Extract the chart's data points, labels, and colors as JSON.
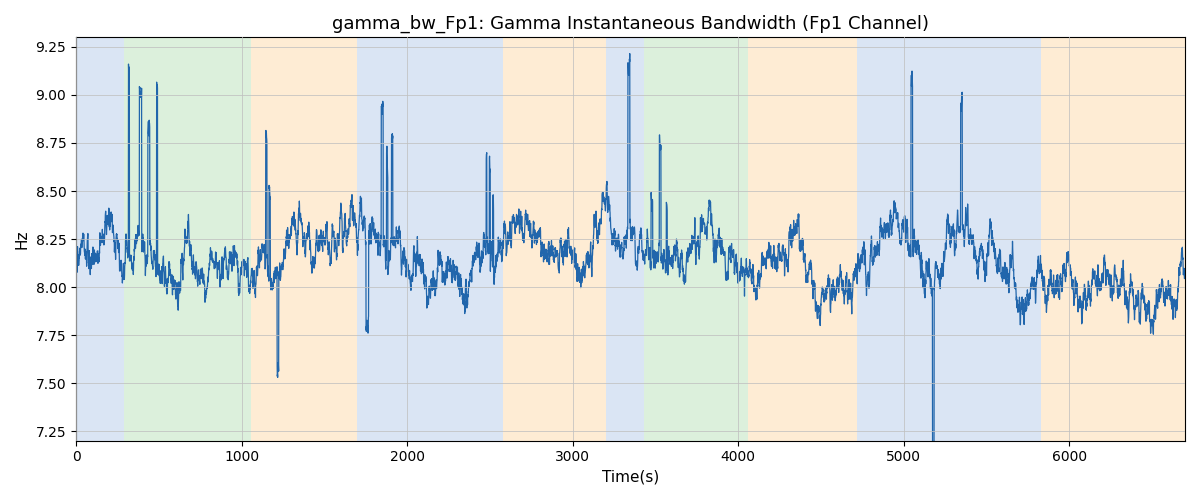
{
  "title": "gamma_bw_Fp1: Gamma Instantaneous Bandwidth (Fp1 Channel)",
  "xlabel": "Time(s)",
  "ylabel": "Hz",
  "xlim": [
    0,
    6700
  ],
  "ylim": [
    7.2,
    9.3
  ],
  "line_color": "#2166ac",
  "line_width": 0.9,
  "bg_color": "#ffffff",
  "grid_color": "#c0c0c0",
  "bands": [
    {
      "xmin": 0,
      "xmax": 290,
      "color": "#aec6e8",
      "alpha": 0.45
    },
    {
      "xmin": 290,
      "xmax": 1060,
      "color": "#b2dfb2",
      "alpha": 0.45
    },
    {
      "xmin": 1060,
      "xmax": 1700,
      "color": "#fdd5a0",
      "alpha": 0.45
    },
    {
      "xmin": 1700,
      "xmax": 2580,
      "color": "#aec6e8",
      "alpha": 0.45
    },
    {
      "xmin": 2580,
      "xmax": 3200,
      "color": "#fdd5a0",
      "alpha": 0.45
    },
    {
      "xmin": 3200,
      "xmax": 3430,
      "color": "#aec6e8",
      "alpha": 0.45
    },
    {
      "xmin": 3430,
      "xmax": 4060,
      "color": "#b2dfb2",
      "alpha": 0.45
    },
    {
      "xmin": 4060,
      "xmax": 4720,
      "color": "#fdd5a0",
      "alpha": 0.45
    },
    {
      "xmin": 4720,
      "xmax": 5830,
      "color": "#aec6e8",
      "alpha": 0.45
    },
    {
      "xmin": 5830,
      "xmax": 6700,
      "color": "#fdd5a0",
      "alpha": 0.45
    }
  ],
  "seed": 12345,
  "n_points": 6700,
  "title_fontsize": 13
}
